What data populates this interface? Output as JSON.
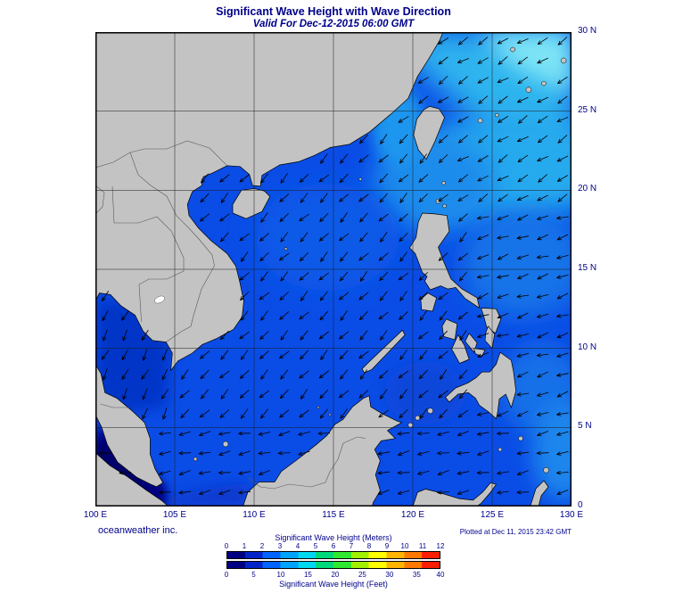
{
  "title": "Significant Wave Height with Wave Direction",
  "subtitle": "Valid For Dec-12-2015 06:00 GMT",
  "credit": "oceanweather inc.",
  "plotted_at": "Plotted at Dec 11, 2015 23:42 GMT",
  "axes": {
    "x_ticks": [
      "100 E",
      "105 E",
      "110 E",
      "115 E",
      "120 E",
      "125 E",
      "130 E"
    ],
    "y_ticks": [
      "0",
      "5 N",
      "10 N",
      "15 N",
      "20 N",
      "25 N",
      "30 N"
    ]
  },
  "legend": {
    "meters_label": "Significant Wave Height (Meters)",
    "feet_label": "Significant Wave Height (Feet)",
    "meters_ticks": [
      "0",
      "1",
      "2",
      "3",
      "4",
      "5",
      "6",
      "7",
      "8",
      "9",
      "10",
      "11",
      "12"
    ],
    "feet_ticks": [
      "0",
      "5",
      "10",
      "15",
      "20",
      "25",
      "30",
      "35",
      "40"
    ],
    "colors": [
      "#000082",
      "#0024c8",
      "#0064ff",
      "#00a4ff",
      "#00d8f0",
      "#00d87c",
      "#30e830",
      "#a0f000",
      "#ffff00",
      "#ffb400",
      "#ff7800",
      "#ff1e00"
    ]
  },
  "map": {
    "land_color": "#c3c3c3",
    "sea_base_color": "#0a4ce6"
  }
}
